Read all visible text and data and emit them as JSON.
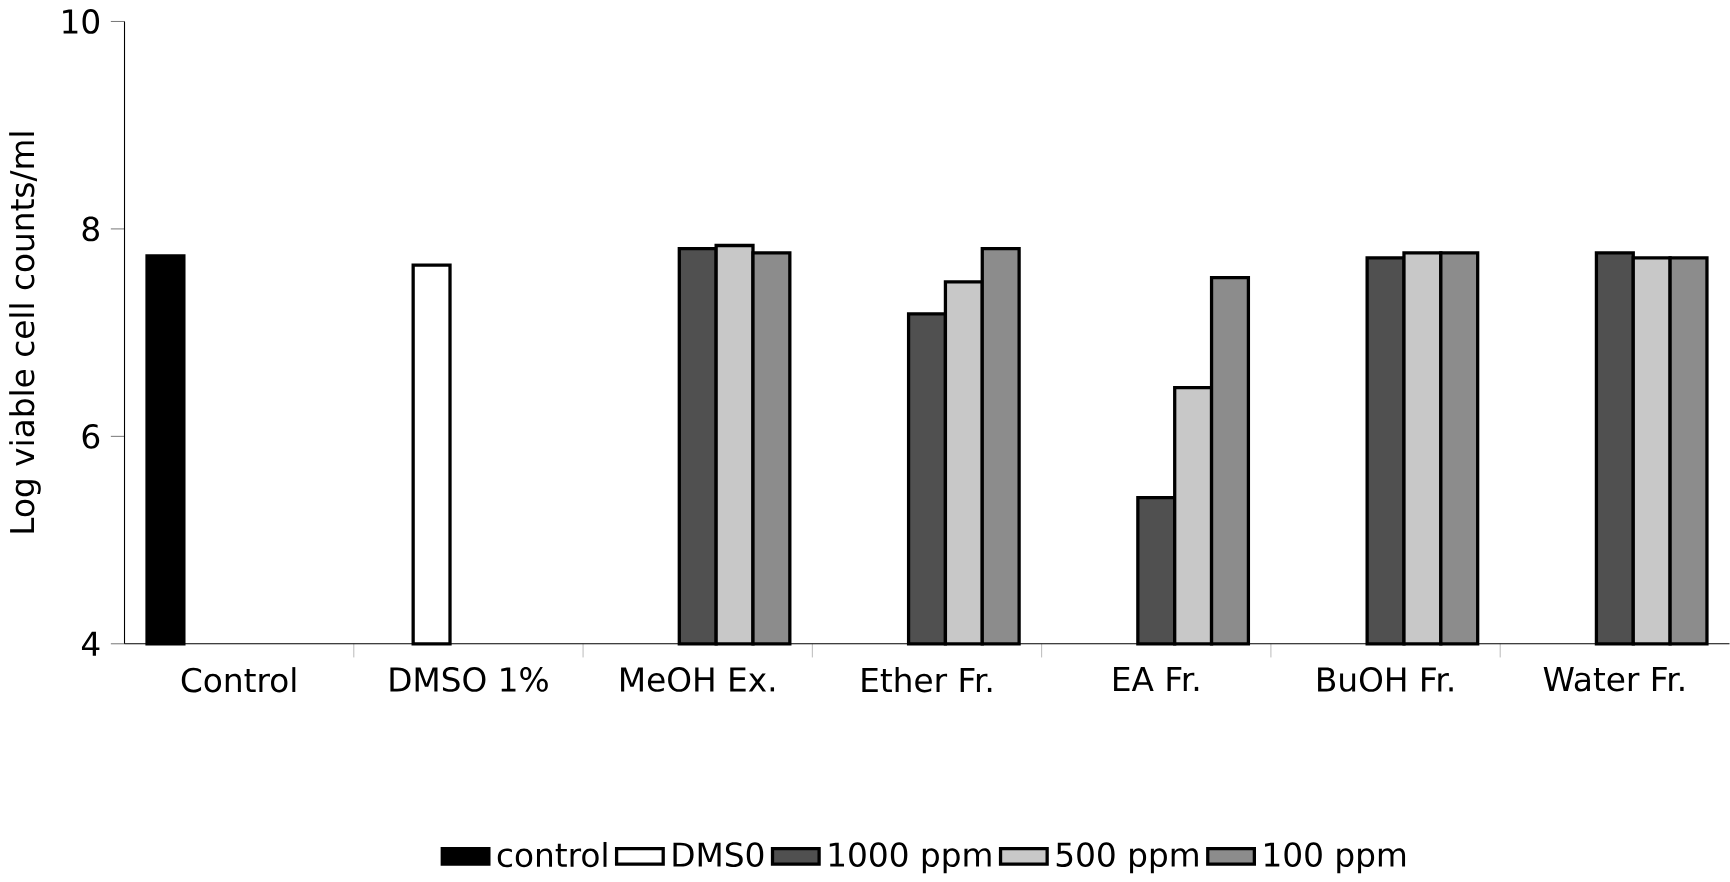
{
  "chart_data": {
    "type": "bar",
    "ylabel": "Log viable cell counts/ml",
    "categories": [
      "Control",
      "DMSO 1%",
      "MeOH Ex.",
      "Ether Fr.",
      "EA Fr.",
      "BuOH Fr.",
      "Water Fr."
    ],
    "series": [
      {
        "name": "control",
        "color": "#000000",
        "values": [
          7.74,
          null,
          null,
          null,
          null,
          null,
          null
        ]
      },
      {
        "name": "DMS0",
        "color": "#ffffff",
        "values": [
          null,
          7.65,
          null,
          null,
          null,
          null,
          null
        ]
      },
      {
        "name": "1000 ppm",
        "color": "#505050",
        "values": [
          null,
          null,
          7.81,
          7.18,
          5.41,
          7.72,
          7.77
        ]
      },
      {
        "name": "500 ppm",
        "color": "#c8c8c8",
        "values": [
          null,
          null,
          7.84,
          7.49,
          6.47,
          7.77,
          7.72
        ]
      },
      {
        "name": "100 ppm",
        "color": "#8c8c8c",
        "values": [
          null,
          null,
          7.77,
          7.81,
          7.53,
          7.77,
          7.72
        ]
      }
    ],
    "ylim": [
      4,
      10
    ],
    "yticks": [
      4,
      6,
      8,
      10
    ],
    "grid": false,
    "legend": "bottom"
  }
}
